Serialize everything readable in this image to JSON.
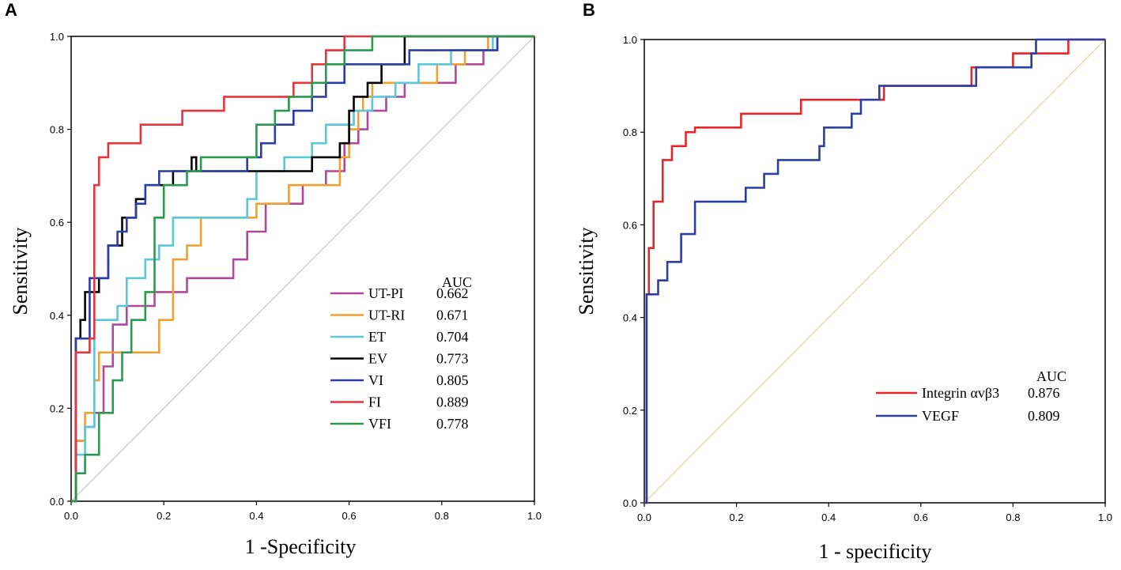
{
  "chart_data": [
    {
      "type": "line",
      "panel_label": "A",
      "xlabel": "1 -Specificity",
      "ylabel": "Sensitivity",
      "xlim": [
        0,
        1
      ],
      "ylim": [
        0,
        1
      ],
      "xticks": [
        "0.0",
        "0.2",
        "0.4",
        "0.6",
        "0.8",
        "1.0"
      ],
      "yticks": [
        "0.0",
        "0.2",
        "0.4",
        "0.6",
        "0.8",
        "1.0"
      ],
      "reference_color": "#d0d0d0",
      "legend_header": "AUC",
      "legend_placement": "bottom-right",
      "series": [
        {
          "name": "UT-PI",
          "auc": "0.662",
          "color": "#b0499a",
          "x": [
            0,
            0.01,
            0.01,
            0.03,
            0.03,
            0.05,
            0.05,
            0.07,
            0.07,
            0.09,
            0.09,
            0.12,
            0.12,
            0.18,
            0.18,
            0.25,
            0.25,
            0.35,
            0.35,
            0.38,
            0.38,
            0.42,
            0.42,
            0.5,
            0.5,
            0.55,
            0.55,
            0.59,
            0.59,
            0.62,
            0.62,
            0.64,
            0.64,
            0.68,
            0.68,
            0.72,
            0.72,
            0.83,
            0.83,
            0.89,
            0.89,
            0.92,
            0.92,
            1.0
          ],
          "y": [
            0,
            0,
            0.13,
            0.13,
            0.16,
            0.16,
            0.19,
            0.19,
            0.29,
            0.29,
            0.38,
            0.38,
            0.42,
            0.42,
            0.45,
            0.45,
            0.48,
            0.48,
            0.52,
            0.52,
            0.58,
            0.58,
            0.64,
            0.64,
            0.68,
            0.68,
            0.71,
            0.71,
            0.77,
            0.77,
            0.8,
            0.8,
            0.84,
            0.84,
            0.87,
            0.87,
            0.9,
            0.9,
            0.94,
            0.94,
            0.97,
            0.97,
            1.0,
            1.0
          ]
        },
        {
          "name": "UT-RI",
          "auc": "0.671",
          "color": "#f0a030",
          "x": [
            0,
            0.01,
            0.01,
            0.03,
            0.03,
            0.05,
            0.05,
            0.06,
            0.06,
            0.19,
            0.19,
            0.22,
            0.22,
            0.25,
            0.25,
            0.28,
            0.28,
            0.4,
            0.4,
            0.47,
            0.47,
            0.58,
            0.58,
            0.6,
            0.6,
            0.62,
            0.62,
            0.63,
            0.63,
            0.65,
            0.65,
            0.79,
            0.79,
            0.85,
            0.85,
            0.9,
            0.9,
            0.92,
            0.92,
            1.0
          ],
          "y": [
            0,
            0,
            0.13,
            0.13,
            0.19,
            0.19,
            0.26,
            0.26,
            0.32,
            0.32,
            0.39,
            0.39,
            0.52,
            0.52,
            0.55,
            0.55,
            0.61,
            0.61,
            0.64,
            0.64,
            0.68,
            0.68,
            0.74,
            0.74,
            0.8,
            0.8,
            0.84,
            0.84,
            0.87,
            0.87,
            0.9,
            0.9,
            0.94,
            0.94,
            0.97,
            0.97,
            1.0,
            1.0,
            1.0,
            1.0
          ]
        },
        {
          "name": "ET",
          "auc": "0.704",
          "color": "#5bc8d8",
          "x": [
            0,
            0.01,
            0.01,
            0.03,
            0.03,
            0.05,
            0.05,
            0.1,
            0.1,
            0.12,
            0.12,
            0.16,
            0.16,
            0.19,
            0.19,
            0.22,
            0.22,
            0.38,
            0.38,
            0.4,
            0.4,
            0.46,
            0.46,
            0.52,
            0.52,
            0.55,
            0.55,
            0.61,
            0.61,
            0.65,
            0.65,
            0.7,
            0.7,
            0.75,
            0.75,
            0.82,
            0.82,
            0.91,
            0.91,
            0.92,
            0.92,
            1.0
          ],
          "y": [
            0,
            0,
            0.1,
            0.1,
            0.16,
            0.16,
            0.39,
            0.39,
            0.42,
            0.42,
            0.48,
            0.48,
            0.52,
            0.52,
            0.55,
            0.55,
            0.61,
            0.61,
            0.65,
            0.65,
            0.71,
            0.71,
            0.74,
            0.74,
            0.77,
            0.77,
            0.81,
            0.81,
            0.84,
            0.84,
            0.87,
            0.87,
            0.9,
            0.9,
            0.94,
            0.94,
            0.97,
            0.97,
            1.0,
            1.0,
            1.0,
            1.0
          ]
        },
        {
          "name": "EV",
          "auc": "0.773",
          "color": "#000000",
          "x": [
            0,
            0.01,
            0.01,
            0.02,
            0.02,
            0.03,
            0.03,
            0.06,
            0.06,
            0.08,
            0.08,
            0.11,
            0.11,
            0.14,
            0.14,
            0.16,
            0.16,
            0.22,
            0.22,
            0.26,
            0.26,
            0.27,
            0.27,
            0.52,
            0.52,
            0.58,
            0.58,
            0.6,
            0.6,
            0.61,
            0.61,
            0.64,
            0.64,
            0.67,
            0.67,
            0.72,
            0.72,
            0.75,
            0.75,
            1.0
          ],
          "y": [
            0,
            0,
            0.35,
            0.35,
            0.39,
            0.39,
            0.45,
            0.45,
            0.48,
            0.48,
            0.55,
            0.55,
            0.61,
            0.61,
            0.65,
            0.65,
            0.68,
            0.68,
            0.71,
            0.71,
            0.74,
            0.74,
            0.71,
            0.71,
            0.74,
            0.74,
            0.77,
            0.77,
            0.84,
            0.84,
            0.87,
            0.87,
            0.9,
            0.9,
            0.94,
            0.94,
            1.0,
            1.0,
            1.0,
            1.0
          ]
        },
        {
          "name": "VI",
          "auc": "0.805",
          "color": "#2c3ea6",
          "x": [
            0,
            0.01,
            0.01,
            0.04,
            0.04,
            0.08,
            0.08,
            0.1,
            0.1,
            0.12,
            0.12,
            0.14,
            0.14,
            0.16,
            0.16,
            0.19,
            0.19,
            0.38,
            0.38,
            0.41,
            0.41,
            0.44,
            0.44,
            0.48,
            0.48,
            0.52,
            0.52,
            0.55,
            0.55,
            0.59,
            0.59,
            0.64,
            0.64,
            0.73,
            0.73,
            0.92,
            0.92,
            1.0
          ],
          "y": [
            0,
            0,
            0.35,
            0.35,
            0.48,
            0.48,
            0.55,
            0.55,
            0.58,
            0.58,
            0.61,
            0.61,
            0.64,
            0.64,
            0.68,
            0.68,
            0.71,
            0.71,
            0.74,
            0.74,
            0.77,
            0.77,
            0.81,
            0.81,
            0.84,
            0.84,
            0.87,
            0.87,
            0.9,
            0.9,
            0.94,
            0.94,
            0.94,
            0.94,
            0.97,
            0.97,
            1.0,
            1.0
          ]
        },
        {
          "name": "FI",
          "auc": "0.889",
          "color": "#e8343c",
          "x": [
            0,
            0.01,
            0.01,
            0.04,
            0.04,
            0.05,
            0.05,
            0.06,
            0.06,
            0.08,
            0.08,
            0.15,
            0.15,
            0.24,
            0.24,
            0.33,
            0.33,
            0.48,
            0.48,
            0.52,
            0.52,
            0.55,
            0.55,
            0.59,
            0.59,
            0.65,
            0.65,
            1.0
          ],
          "y": [
            0,
            0,
            0.32,
            0.32,
            0.35,
            0.35,
            0.68,
            0.68,
            0.74,
            0.74,
            0.77,
            0.77,
            0.81,
            0.81,
            0.84,
            0.84,
            0.87,
            0.87,
            0.9,
            0.9,
            0.94,
            0.94,
            0.97,
            0.97,
            1.0,
            1.0,
            1.0,
            1.0
          ]
        },
        {
          "name": "VFI",
          "auc": "0.778",
          "color": "#2a9a50",
          "x": [
            0,
            0.01,
            0.01,
            0.03,
            0.03,
            0.06,
            0.06,
            0.09,
            0.09,
            0.11,
            0.11,
            0.13,
            0.13,
            0.16,
            0.16,
            0.18,
            0.18,
            0.2,
            0.2,
            0.25,
            0.25,
            0.28,
            0.28,
            0.4,
            0.4,
            0.44,
            0.44,
            0.47,
            0.47,
            0.52,
            0.52,
            0.55,
            0.55,
            0.59,
            0.59,
            0.65,
            0.65,
            0.69,
            0.69,
            1.0
          ],
          "y": [
            0,
            0,
            0.06,
            0.06,
            0.1,
            0.1,
            0.19,
            0.19,
            0.26,
            0.26,
            0.32,
            0.32,
            0.39,
            0.39,
            0.45,
            0.45,
            0.61,
            0.61,
            0.68,
            0.68,
            0.71,
            0.71,
            0.74,
            0.74,
            0.81,
            0.81,
            0.84,
            0.84,
            0.87,
            0.87,
            0.9,
            0.9,
            0.94,
            0.94,
            0.97,
            0.97,
            1.0,
            1.0,
            1.0,
            1.0
          ]
        }
      ]
    },
    {
      "type": "line",
      "panel_label": "B",
      "xlabel": "1 - specificity",
      "ylabel": "Sensitivity",
      "xlim": [
        0,
        1
      ],
      "ylim": [
        0,
        1
      ],
      "xticks": [
        "0.0",
        "0.2",
        "0.4",
        "0.6",
        "0.8",
        "1.0"
      ],
      "yticks": [
        "0.0",
        "0.2",
        "0.4",
        "0.6",
        "0.8",
        "1.0"
      ],
      "reference_color": "#e6dcb0",
      "legend_header": "AUC",
      "legend_placement": "bottom-right",
      "series": [
        {
          "name": "Integrin αvβ3",
          "auc": "0.876",
          "color": "#e8262a",
          "x": [
            0,
            0.005,
            0.005,
            0.01,
            0.01,
            0.02,
            0.02,
            0.04,
            0.04,
            0.06,
            0.06,
            0.07,
            0.07,
            0.09,
            0.09,
            0.11,
            0.11,
            0.21,
            0.21,
            0.34,
            0.34,
            0.52,
            0.52,
            0.71,
            0.71,
            0.8,
            0.8,
            0.84,
            0.84,
            0.92,
            0.92,
            1.0
          ],
          "y": [
            0,
            0,
            0.45,
            0.45,
            0.55,
            0.55,
            0.65,
            0.65,
            0.74,
            0.74,
            0.77,
            0.77,
            0.77,
            0.77,
            0.8,
            0.8,
            0.81,
            0.81,
            0.84,
            0.84,
            0.87,
            0.87,
            0.9,
            0.9,
            0.94,
            0.94,
            0.97,
            0.97,
            0.97,
            0.97,
            1.0,
            1.0
          ]
        },
        {
          "name": "VEGF",
          "auc": "0.809",
          "color": "#2c3ea6",
          "x": [
            0,
            0.005,
            0.005,
            0.03,
            0.03,
            0.05,
            0.05,
            0.08,
            0.08,
            0.09,
            0.09,
            0.11,
            0.11,
            0.22,
            0.22,
            0.26,
            0.26,
            0.29,
            0.29,
            0.38,
            0.38,
            0.39,
            0.39,
            0.45,
            0.45,
            0.47,
            0.47,
            0.51,
            0.51,
            0.72,
            0.72,
            0.84,
            0.84,
            0.85,
            0.85,
            1.0
          ],
          "y": [
            0,
            0,
            0.45,
            0.45,
            0.48,
            0.48,
            0.52,
            0.52,
            0.58,
            0.58,
            0.58,
            0.58,
            0.65,
            0.65,
            0.68,
            0.68,
            0.71,
            0.71,
            0.74,
            0.74,
            0.77,
            0.77,
            0.81,
            0.81,
            0.84,
            0.84,
            0.87,
            0.87,
            0.9,
            0.9,
            0.94,
            0.94,
            0.97,
            0.97,
            1.0,
            1.0
          ]
        }
      ]
    }
  ]
}
